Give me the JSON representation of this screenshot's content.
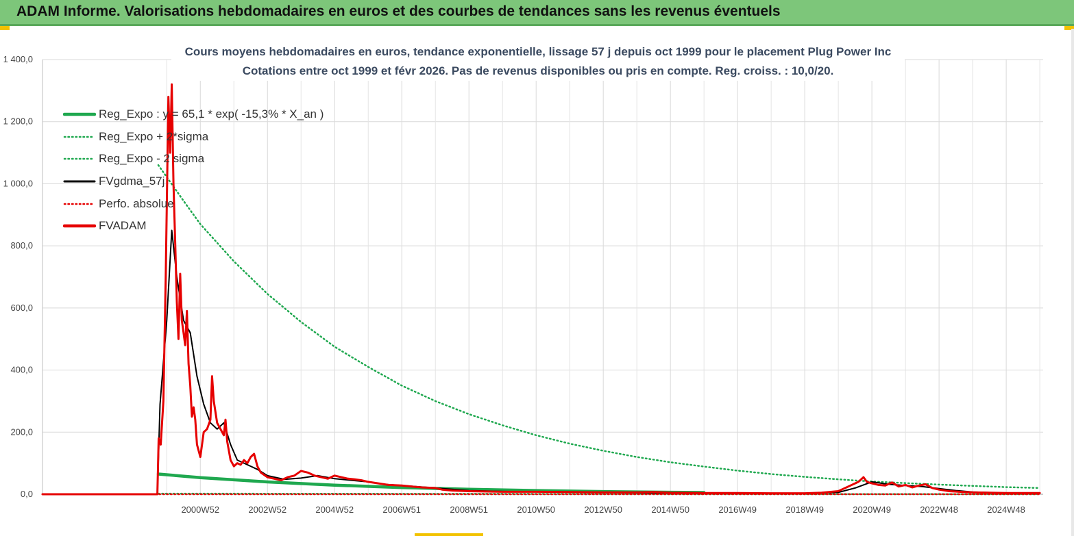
{
  "header": {
    "title": "ADAM Informe. Valorisations hebdomadaires en euros et des courbes de tendances sans les revenus éventuels"
  },
  "chart_data": {
    "type": "line",
    "title_line1": "Cours moyens hebdomadaires en euros, tendance exponentielle, lissage 57 j depuis oct 1999 pour le placement Plug Power Inc",
    "title_line2": "Cotations entre oct 1999 et févr 2026. Pas de revenus disponibles ou pris en compte. Reg. croiss. : 10,0/20.",
    "ylim": [
      0,
      1400
    ],
    "yticks": [
      "0,0",
      "200,0",
      "400,0",
      "600,0",
      "800,0",
      "1 000,0",
      "1 200,0",
      "1 400,0"
    ],
    "ytick_values": [
      0,
      200,
      400,
      600,
      800,
      1000,
      1200,
      1400
    ],
    "xlim": [
      1996.3,
      2026.1
    ],
    "xtick_labels": [
      "2000W52",
      "2002W52",
      "2004W52",
      "2006W51",
      "2008W51",
      "2010W50",
      "2012W50",
      "2014W50",
      "2016W49",
      "2018W49",
      "2020W49",
      "2022W48",
      "2024W48"
    ],
    "xtick_positions": [
      2001.0,
      2003.0,
      2005.0,
      2007.0,
      2009.0,
      2011.0,
      2013.0,
      2015.0,
      2017.0,
      2019.0,
      2021.0,
      2023.0,
      2025.0
    ],
    "grid": true,
    "legend_position": "top-left",
    "series": [
      {
        "name": "Reg_Expo : y = 65,1 * exp( -15,3% *  X_an )",
        "color": "#1fa84f",
        "style": "solid",
        "x": [
          1999.75,
          2001,
          2003,
          2005,
          2007,
          2009,
          2011,
          2013,
          2015,
          2016
        ],
        "y": [
          65.1,
          53.5,
          39.6,
          29.3,
          21.6,
          16.0,
          11.8,
          8.7,
          6.5,
          5.5
        ]
      },
      {
        "name": "Reg_Expo + 2*sigma",
        "color": "#1fa84f",
        "style": "dotted",
        "x": [
          1999.75,
          2000.5,
          2001,
          2002,
          2003,
          2004,
          2005,
          2006,
          2007,
          2008,
          2009,
          2010,
          2011,
          2012,
          2013,
          2014,
          2015,
          2016,
          2017,
          2018,
          2019,
          2020,
          2021,
          2022,
          2023,
          2024,
          2025,
          2026
        ],
        "y": [
          1060,
          945,
          870,
          750,
          645,
          555,
          475,
          410,
          350,
          300,
          258,
          222,
          190,
          163,
          140,
          120,
          103,
          89,
          76,
          65,
          56,
          48,
          41,
          36,
          31,
          27,
          23,
          20
        ]
      },
      {
        "name": "Reg_Expo - 2 sigma",
        "color": "#1fa84f",
        "style": "dotted",
        "x": [
          1999.75,
          2026
        ],
        "y": [
          2,
          0.2
        ]
      },
      {
        "name": "FVgdma_57j",
        "color": "#000000",
        "style": "solid",
        "x": [
          1996.3,
          1999.72,
          1999.8,
          2000.0,
          2000.15,
          2000.3,
          2000.5,
          2000.7,
          2000.9,
          2001.1,
          2001.3,
          2001.5,
          2001.7,
          2001.9,
          2002.1,
          2002.4,
          2002.7,
          2003.0,
          2003.5,
          2004.0,
          2004.5,
          2005.0,
          2005.5,
          2006.0,
          2006.5,
          2007.0,
          2008.0,
          2009.0,
          2010.0,
          2011.0,
          2012.0,
          2013.0,
          2014.0,
          2015.0,
          2016.0,
          2017.0,
          2018.0,
          2019.0,
          2020.0,
          2020.5,
          2021.0,
          2021.5,
          2022.0,
          2022.5,
          2023.0,
          2023.5,
          2024.0,
          2025.0,
          2026.0
        ],
        "y": [
          0,
          0,
          290,
          560,
          850,
          700,
          560,
          520,
          380,
          290,
          230,
          210,
          230,
          160,
          110,
          95,
          80,
          60,
          48,
          52,
          60,
          50,
          45,
          40,
          32,
          28,
          20,
          12,
          9,
          8,
          7,
          6,
          5,
          4,
          4,
          3,
          3,
          3,
          6,
          20,
          40,
          32,
          28,
          25,
          18,
          12,
          7,
          4,
          3
        ]
      },
      {
        "name": "Perfo. absolue",
        "color": "#e60000",
        "style": "dotted",
        "x": [
          1996.3,
          2026
        ],
        "y": [
          0,
          0
        ]
      },
      {
        "name": "FVADAM",
        "color": "#e60000",
        "style": "solid",
        "x": [
          1996.3,
          1999.72,
          1999.76,
          1999.82,
          1999.9,
          1999.97,
          2000.05,
          2000.1,
          2000.15,
          2000.2,
          2000.25,
          2000.3,
          2000.35,
          2000.4,
          2000.45,
          2000.5,
          2000.55,
          2000.6,
          2000.65,
          2000.7,
          2000.75,
          2000.8,
          2000.85,
          2000.9,
          2001.0,
          2001.1,
          2001.2,
          2001.3,
          2001.35,
          2001.4,
          2001.5,
          2001.6,
          2001.7,
          2001.75,
          2001.8,
          2001.9,
          2002.0,
          2002.1,
          2002.2,
          2002.3,
          2002.4,
          2002.5,
          2002.6,
          2002.7,
          2002.8,
          2003.0,
          2003.2,
          2003.4,
          2003.6,
          2003.8,
          2004.0,
          2004.2,
          2004.4,
          2004.6,
          2004.8,
          2005.0,
          2005.2,
          2005.4,
          2005.6,
          2005.8,
          2006.0,
          2006.3,
          2006.6,
          2007.0,
          2007.3,
          2007.6,
          2008.0,
          2008.2,
          2008.5,
          2009.0,
          2010.0,
          2011.0,
          2012.0,
          2013.0,
          2014.0,
          2014.5,
          2015.0,
          2016.0,
          2017.0,
          2018.0,
          2019.0,
          2019.5,
          2020.0,
          2020.3,
          2020.6,
          2020.75,
          2020.85,
          2021.0,
          2021.2,
          2021.4,
          2021.6,
          2021.8,
          2022.0,
          2022.2,
          2022.4,
          2022.6,
          2022.8,
          2023.0,
          2023.3,
          2023.6,
          2024.0,
          2024.5,
          2025.0,
          2026.0
        ],
        "y": [
          0,
          0,
          180,
          160,
          300,
          700,
          1280,
          1100,
          1320,
          1000,
          820,
          620,
          500,
          710,
          560,
          520,
          480,
          590,
          420,
          350,
          250,
          280,
          240,
          160,
          120,
          200,
          210,
          240,
          380,
          300,
          230,
          210,
          190,
          240,
          170,
          110,
          90,
          100,
          95,
          110,
          100,
          120,
          130,
          90,
          70,
          55,
          50,
          45,
          55,
          60,
          75,
          70,
          60,
          55,
          50,
          60,
          55,
          50,
          48,
          45,
          40,
          35,
          30,
          28,
          25,
          22,
          20,
          15,
          12,
          10,
          8,
          8,
          7,
          6,
          6,
          7,
          5,
          4,
          4,
          3,
          3,
          5,
          10,
          25,
          40,
          55,
          40,
          35,
          30,
          28,
          38,
          25,
          30,
          22,
          28,
          32,
          20,
          15,
          10,
          8,
          6,
          5,
          4,
          4
        ]
      }
    ]
  }
}
